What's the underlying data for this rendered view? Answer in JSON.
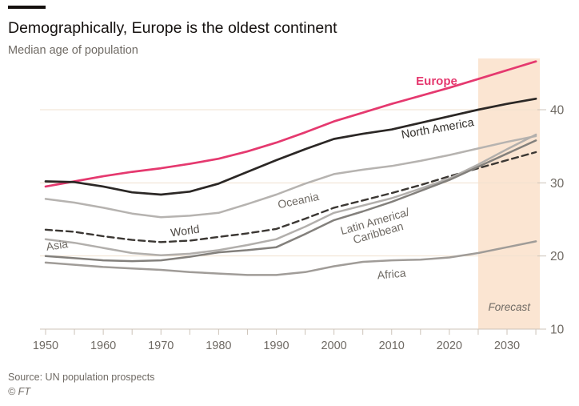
{
  "header": {
    "title": "Demographically, Europe is the oldest continent",
    "subtitle": "Median age of population"
  },
  "footer": {
    "source": "Source: UN population prospects",
    "credit": "© FT"
  },
  "colors": {
    "background": "#ffffff",
    "forecast_band": "#fbe5d2",
    "gridline": "#f0e1cf",
    "axis": "#ccc3b8",
    "tick_label": "#6f6a64",
    "title_text": "#14100e",
    "annotation_gray": "#6f6a64"
  },
  "chart_data": {
    "type": "line",
    "title": "Demographically, Europe is the oldest continent",
    "subtitle": "Median age of population",
    "xlabel": "",
    "ylabel": "",
    "grid": "horizontal",
    "legend": "inline-labels",
    "xlim": [
      1950,
      2035.7
    ],
    "ylim": [
      10,
      47
    ],
    "yticks": [
      10,
      20,
      30,
      40
    ],
    "xticks_labeled": [
      1950,
      1960,
      1970,
      1980,
      1990,
      2000,
      2010,
      2020,
      2030
    ],
    "xtick_minor_step": 5,
    "forecast": {
      "label": "Forecast",
      "start": 2025,
      "end": 2035.7
    },
    "x": [
      1950,
      1955,
      1960,
      1965,
      1970,
      1975,
      1980,
      1985,
      1990,
      1995,
      2000,
      2005,
      2010,
      2015,
      2020,
      2025,
      2030,
      2035
    ],
    "series": [
      {
        "name": "Europe",
        "color": "#e5396f",
        "width": 2.7,
        "dash": null,
        "values": [
          29.5,
          30.2,
          30.9,
          31.5,
          32.0,
          32.6,
          33.3,
          34.3,
          35.5,
          36.9,
          38.4,
          39.6,
          40.8,
          41.9,
          43.0,
          44.2,
          45.4,
          46.6
        ],
        "label": {
          "x": 546,
          "y": 106,
          "rotate": 0,
          "bold": true,
          "color": "#e5396f",
          "size": 15
        }
      },
      {
        "name": "North America",
        "color": "#2b2725",
        "width": 2.7,
        "dash": null,
        "values": [
          30.2,
          30.1,
          29.5,
          28.7,
          28.4,
          28.8,
          29.9,
          31.5,
          33.1,
          34.6,
          36.0,
          36.7,
          37.3,
          38.2,
          39.1,
          40.0,
          40.8,
          41.5
        ],
        "label": {
          "x": 548,
          "y": 165,
          "rotate": -10,
          "bold": false,
          "color": "#33302c",
          "size": 14.5
        }
      },
      {
        "name": "Oceania",
        "color": "#b6b3b0",
        "width": 2.5,
        "dash": null,
        "values": [
          27.8,
          27.3,
          26.6,
          25.8,
          25.3,
          25.5,
          25.9,
          27.1,
          28.4,
          29.9,
          31.2,
          31.8,
          32.3,
          33.0,
          33.8,
          34.7,
          35.6,
          36.4
        ],
        "label": {
          "x": 374,
          "y": 255,
          "rotate": -12,
          "bold": false,
          "color": "#6f6a64",
          "size": 14
        }
      },
      {
        "name": "World",
        "color": "#3b3733",
        "width": 2.4,
        "dash": "8 5",
        "values": [
          23.6,
          23.3,
          22.7,
          22.2,
          21.9,
          22.1,
          22.6,
          23.1,
          23.7,
          25.1,
          26.6,
          27.6,
          28.6,
          29.7,
          30.9,
          32.0,
          33.1,
          34.2
        ],
        "label": {
          "x": 232,
          "y": 293,
          "rotate": -8,
          "bold": false,
          "color": "#4c4742",
          "size": 14
        }
      },
      {
        "name": "Asia",
        "color": "#b2afac",
        "width": 2.5,
        "dash": null,
        "values": [
          22.3,
          21.8,
          21.1,
          20.4,
          20.1,
          20.3,
          20.8,
          21.5,
          22.3,
          24.0,
          25.9,
          26.9,
          27.9,
          29.2,
          30.6,
          32.5,
          34.6,
          36.6
        ],
        "label": {
          "x": 72,
          "y": 311,
          "rotate": -8,
          "bold": false,
          "color": "#6f6a64",
          "size": 14
        }
      },
      {
        "name": "Latin America/ Caribbean",
        "lines": [
          "Latin America/",
          "Caribbean"
        ],
        "color": "#83807c",
        "width": 2.5,
        "dash": null,
        "values": [
          20.0,
          19.7,
          19.4,
          19.3,
          19.4,
          19.9,
          20.5,
          20.8,
          21.2,
          23.0,
          24.9,
          26.1,
          27.4,
          28.9,
          30.4,
          32.2,
          34.0,
          35.8
        ],
        "label": {
          "x": 470,
          "y": 281,
          "rotate": -16,
          "bold": false,
          "color": "#6f6a64",
          "size": 14
        }
      },
      {
        "name": "Africa",
        "color": "#a09c98",
        "width": 2.5,
        "dash": null,
        "values": [
          19.1,
          18.8,
          18.5,
          18.3,
          18.1,
          17.8,
          17.6,
          17.4,
          17.4,
          17.8,
          18.6,
          19.2,
          19.4,
          19.5,
          19.8,
          20.4,
          21.2,
          22.0
        ],
        "label": {
          "x": 490,
          "y": 347,
          "rotate": -5,
          "bold": false,
          "color": "#6f6a64",
          "size": 14
        }
      }
    ]
  }
}
